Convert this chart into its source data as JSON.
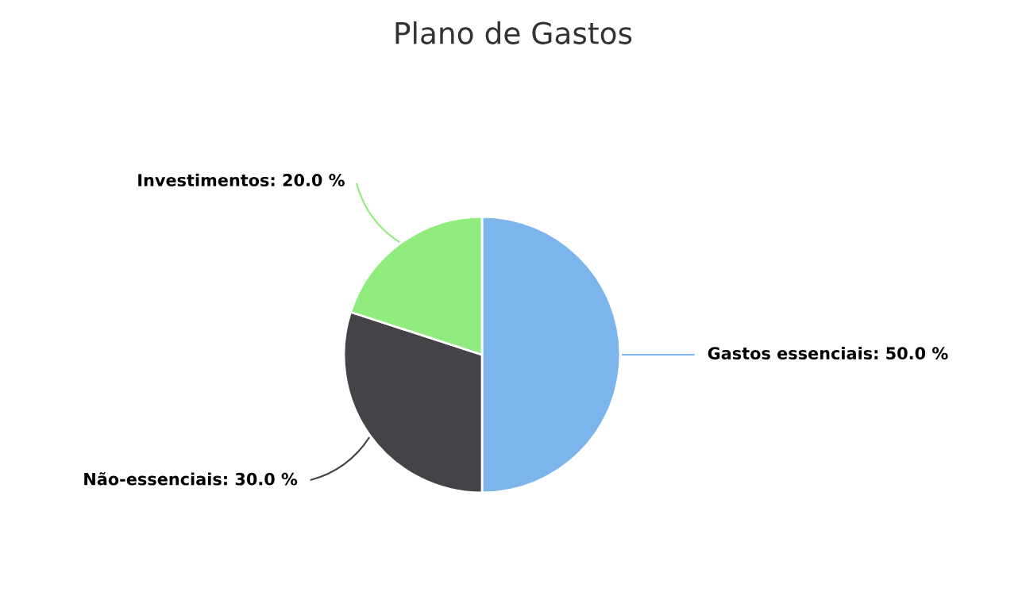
{
  "chart_data": {
    "type": "pie",
    "title": "Plano de Gastos",
    "categories": [
      "Gastos essenciais",
      "Não-essenciais",
      "Investimentos"
    ],
    "values": [
      50,
      30,
      20
    ],
    "value_labels": [
      "50.0 %",
      "30.0 %",
      "20.0 %"
    ],
    "colors": [
      "#7cb5ec",
      "#434348",
      "#90ed7d"
    ],
    "legend": false
  }
}
